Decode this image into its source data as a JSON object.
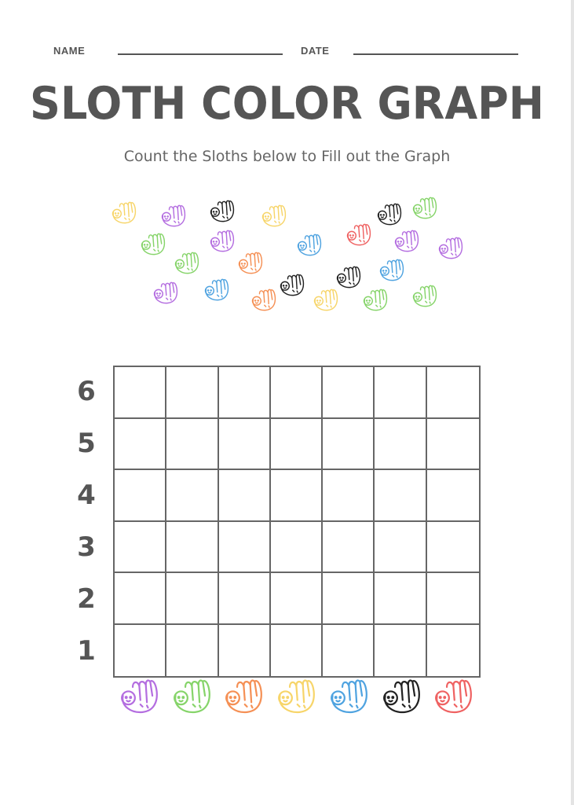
{
  "header": {
    "name_label": "NAME",
    "date_label": "DATE"
  },
  "title": "SLOTH COLOR GRAPH",
  "subtitle": "Count the Sloths below to Fill out the Graph",
  "colors": {
    "yellow": "#f7d56a",
    "purple": "#b46ee0",
    "black": "#222222",
    "green": "#86d46a",
    "blue": "#4fa3e0",
    "red": "#ef6262",
    "orange": "#f59055"
  },
  "sloths": [
    "yellow",
    "purple",
    "black",
    "yellow",
    "black",
    "green",
    "green",
    "purple",
    "blue",
    "red",
    "purple",
    "purple",
    "green",
    "orange",
    "black",
    "black",
    "blue",
    "purple",
    "blue",
    "orange",
    "yellow",
    "green",
    "green"
  ],
  "graph": {
    "y_labels": [
      "6",
      "5",
      "4",
      "3",
      "2",
      "1"
    ],
    "columns": [
      "purple",
      "green",
      "orange",
      "yellow",
      "blue",
      "black",
      "red"
    ]
  }
}
